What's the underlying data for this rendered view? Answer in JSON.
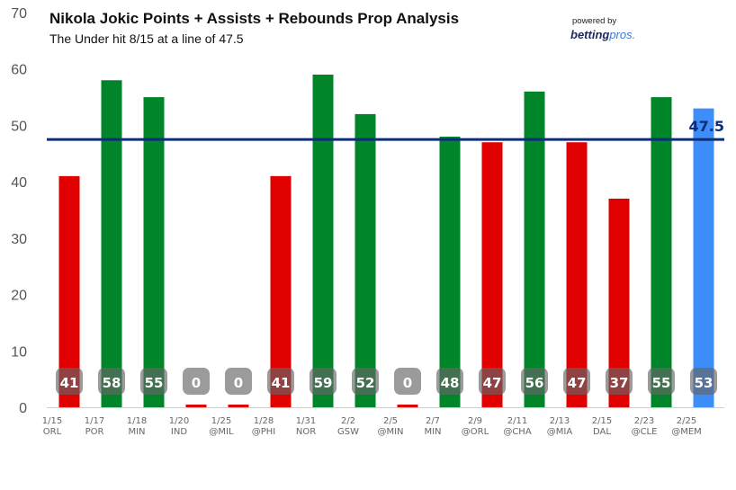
{
  "chart_data": {
    "type": "bar",
    "title": "Nikola Jokic Points + Assists + Rebounds Prop Analysis",
    "subtitle": "The Under hit 8/15 at a line of 47.5",
    "categories": [
      [
        "1/15",
        "ORL"
      ],
      [
        "1/17",
        "POR"
      ],
      [
        "1/18",
        "MIN"
      ],
      [
        "1/20",
        "IND"
      ],
      [
        "1/25",
        "@MIL"
      ],
      [
        "1/28",
        "@PHI"
      ],
      [
        "1/31",
        "NOR"
      ],
      [
        "2/2",
        "GSW"
      ],
      [
        "2/5",
        "@MIN"
      ],
      [
        "2/7",
        "MIN"
      ],
      [
        "2/9",
        "@ORL"
      ],
      [
        "2/11",
        "@CHA"
      ],
      [
        "2/13",
        "@MIA"
      ],
      [
        "2/15",
        "DAL"
      ],
      [
        "2/23",
        "@CLE"
      ],
      [
        "2/25",
        "@MEM"
      ]
    ],
    "values": [
      41,
      58,
      55,
      0,
      0,
      41,
      59,
      52,
      0,
      48,
      47,
      56,
      47,
      37,
      55,
      53
    ],
    "outcomes": [
      "under",
      "over",
      "over",
      "under",
      "under",
      "under",
      "over",
      "over",
      "under",
      "over",
      "under",
      "over",
      "under",
      "under",
      "over",
      "upcoming"
    ],
    "line": 47.5,
    "line_label": "47.5",
    "ylim": [
      0,
      70
    ],
    "yticks": [
      0,
      10,
      20,
      30,
      40,
      50,
      60,
      70
    ],
    "grid": false,
    "colors": {
      "over": "#00852a",
      "under": "#e00000",
      "upcoming": "#3d8ef8",
      "line": "#0d2d7a",
      "label_bg": "#666666"
    }
  },
  "branding": {
    "powered_by": "powered by",
    "brand_main": "betting",
    "brand_accent": "pros."
  }
}
